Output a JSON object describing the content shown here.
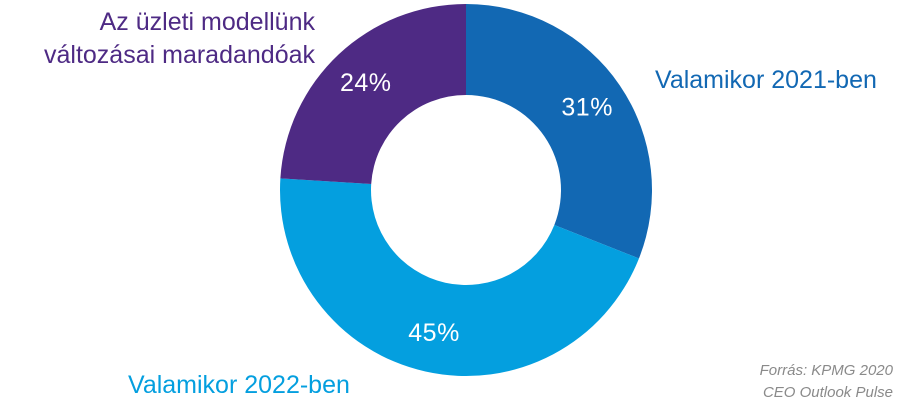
{
  "chart_data": {
    "type": "pie",
    "donut": true,
    "categories": [
      "Valamikor 2021-ben",
      "Valamikor 2022-ben",
      "Az üzleti modellünk változásai maradandóak"
    ],
    "values": [
      31,
      45,
      24
    ],
    "value_labels": [
      "31%",
      "45%",
      "24%"
    ],
    "colors": [
      "#1268b3",
      "#049fdf",
      "#4e2a84"
    ],
    "label_colors": [
      "#1268b3",
      "#049fdf",
      "#4e2a84"
    ],
    "start": "top",
    "direction": "clockwise",
    "legend": "none"
  },
  "source": {
    "line1": "Forrás: KPMG 2020",
    "line2": "CEO Outlook Pulse"
  }
}
